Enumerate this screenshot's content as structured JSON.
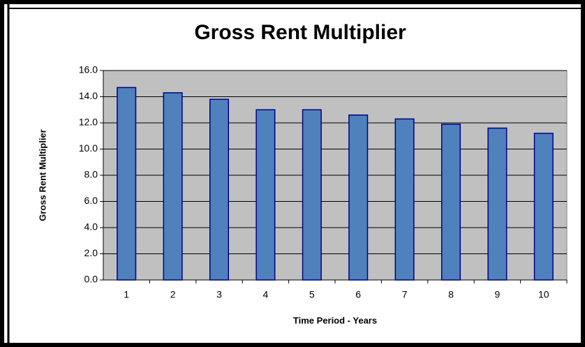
{
  "chart_data": {
    "type": "bar",
    "title": "Gross Rent Multiplier",
    "x_label": "Time Period - Years",
    "y_label": "Gross Rent Multiplier",
    "categories": [
      "1",
      "2",
      "3",
      "4",
      "5",
      "6",
      "7",
      "8",
      "9",
      "10"
    ],
    "values": [
      14.7,
      14.3,
      13.8,
      13.0,
      13.0,
      12.6,
      12.3,
      11.9,
      11.6,
      11.2
    ],
    "color": "#4f81bd",
    "edge_color": "#000080",
    "plot_background": "#c0c0c0",
    "ylim": [
      0,
      16
    ],
    "yticks": [
      {
        "value": 0,
        "label": "0.0"
      },
      {
        "value": 2,
        "label": "2.0"
      },
      {
        "value": 4,
        "label": "4.0"
      },
      {
        "value": 6,
        "label": "6.0"
      },
      {
        "value": 8,
        "label": "8.0"
      },
      {
        "value": 10,
        "label": "10.0"
      },
      {
        "value": 12,
        "label": "12.0"
      },
      {
        "value": 14,
        "label": "14.0"
      },
      {
        "value": 16,
        "label": "16.0"
      }
    ],
    "grid": true
  }
}
